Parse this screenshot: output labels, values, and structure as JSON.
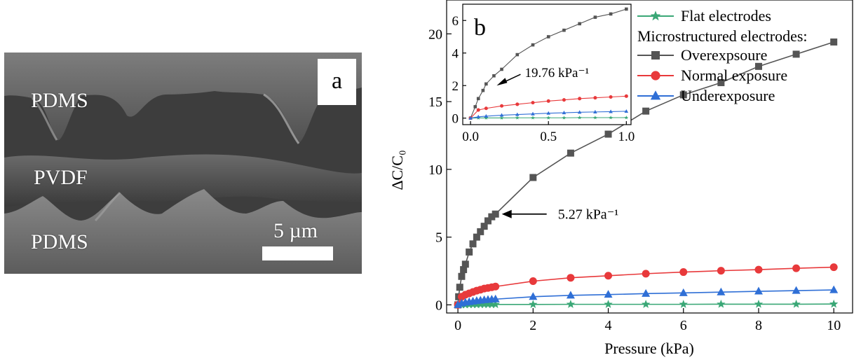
{
  "sem_image": {
    "panel_label": "a",
    "layer_labels": [
      "PDMS",
      "PVDF",
      "PDMS"
    ],
    "scale_bar_label": "5 µm"
  },
  "chart_data": [
    {
      "type": "line",
      "panel_label": "b",
      "xlabel": "Pressure (kPa)",
      "ylabel": "ΔC/C₀",
      "xlim": [
        -0.3,
        10.5
      ],
      "ylim": [
        -0.6,
        22.5
      ],
      "x_ticks": [
        0,
        2,
        4,
        6,
        8,
        10
      ],
      "y_ticks": [
        0,
        5,
        10,
        15,
        20
      ],
      "grid": false,
      "legend_position": "top-right",
      "legend_heading": "Microstructured electrodes:",
      "annotation": {
        "text": "5.27 kPa⁻¹",
        "x": 1.0,
        "y": 6.7
      },
      "series": [
        {
          "name": "Flat electrodes",
          "color": "#3aa776",
          "marker": "star",
          "x": [
            0,
            0.1,
            0.2,
            0.3,
            0.4,
            0.5,
            0.6,
            0.7,
            0.8,
            0.9,
            1,
            2,
            3,
            4,
            5,
            6,
            7,
            8,
            9,
            10
          ],
          "y": [
            0,
            0.01,
            0.01,
            0.02,
            0.02,
            0.02,
            0.03,
            0.03,
            0.03,
            0.03,
            0.03,
            0.03,
            0.04,
            0.04,
            0.04,
            0.04,
            0.05,
            0.05,
            0.05,
            0.06
          ]
        },
        {
          "name": "Overexpsoure",
          "color": "#555555",
          "marker": "square",
          "x": [
            0,
            0.02,
            0.05,
            0.1,
            0.15,
            0.2,
            0.3,
            0.4,
            0.5,
            0.6,
            0.7,
            0.8,
            0.9,
            1,
            2,
            3,
            4,
            5,
            6,
            7,
            8,
            9,
            10
          ],
          "y": [
            0,
            0.6,
            1.3,
            2.1,
            2.6,
            3.0,
            3.9,
            4.5,
            5.0,
            5.4,
            5.8,
            6.2,
            6.5,
            6.7,
            9.4,
            11.2,
            12.6,
            14.3,
            15.5,
            16.4,
            17.6,
            18.5,
            19.4
          ]
        },
        {
          "name": "Normal exposure",
          "color": "#e8393b",
          "marker": "circle",
          "x": [
            0,
            0.1,
            0.2,
            0.3,
            0.4,
            0.5,
            0.6,
            0.7,
            0.8,
            0.9,
            1,
            2,
            3,
            4,
            5,
            6,
            7,
            8,
            9,
            10
          ],
          "y": [
            0,
            0.6,
            0.75,
            0.85,
            0.95,
            1.05,
            1.12,
            1.2,
            1.25,
            1.3,
            1.35,
            1.75,
            2.0,
            2.15,
            2.3,
            2.42,
            2.52,
            2.6,
            2.7,
            2.78
          ]
        },
        {
          "name": "Underexposure",
          "color": "#2f6fd6",
          "marker": "triangle",
          "x": [
            0,
            0.1,
            0.2,
            0.3,
            0.4,
            0.5,
            0.6,
            0.7,
            0.8,
            0.9,
            1,
            2,
            3,
            4,
            5,
            6,
            7,
            8,
            9,
            10
          ],
          "y": [
            0,
            0.12,
            0.18,
            0.22,
            0.26,
            0.3,
            0.33,
            0.36,
            0.38,
            0.4,
            0.42,
            0.6,
            0.7,
            0.76,
            0.83,
            0.88,
            0.94,
            1.0,
            1.05,
            1.1
          ]
        }
      ]
    },
    {
      "type": "line",
      "panel_label": "b",
      "xlim": [
        -0.05,
        1.03
      ],
      "ylim": [
        -0.4,
        7.0
      ],
      "x_ticks": [
        0.0,
        0.5,
        1.0
      ],
      "y_ticks": [
        0,
        2,
        4,
        6
      ],
      "grid": false,
      "annotation": {
        "text": "19.76 kPa⁻¹",
        "x": 0.15,
        "y": 2.0
      },
      "series": [
        {
          "color": "#3aa776",
          "x": [
            0,
            0.05,
            0.1,
            0.2,
            0.3,
            0.4,
            0.5,
            0.6,
            0.7,
            0.8,
            0.9,
            1.0
          ],
          "y": [
            0,
            0.01,
            0.01,
            0.01,
            0.02,
            0.02,
            0.02,
            0.02,
            0.03,
            0.03,
            0.03,
            0.03
          ]
        },
        {
          "color": "#555555",
          "x": [
            0,
            0.03,
            0.05,
            0.08,
            0.1,
            0.15,
            0.2,
            0.3,
            0.4,
            0.5,
            0.6,
            0.7,
            0.8,
            0.9,
            1.0
          ],
          "y": [
            0,
            0.7,
            1.2,
            1.7,
            2.1,
            2.6,
            3.0,
            3.9,
            4.5,
            5.0,
            5.4,
            5.8,
            6.2,
            6.4,
            6.7
          ]
        },
        {
          "color": "#e8393b",
          "x": [
            0,
            0.05,
            0.1,
            0.2,
            0.3,
            0.4,
            0.5,
            0.6,
            0.7,
            0.8,
            0.9,
            1.0
          ],
          "y": [
            0,
            0.5,
            0.6,
            0.75,
            0.85,
            0.95,
            1.05,
            1.12,
            1.2,
            1.25,
            1.3,
            1.35
          ]
        },
        {
          "color": "#2f6fd6",
          "x": [
            0,
            0.05,
            0.1,
            0.2,
            0.3,
            0.4,
            0.5,
            0.6,
            0.7,
            0.8,
            0.9,
            1.0
          ],
          "y": [
            0,
            0.08,
            0.12,
            0.18,
            0.22,
            0.26,
            0.3,
            0.33,
            0.36,
            0.38,
            0.4,
            0.42
          ]
        }
      ]
    }
  ]
}
